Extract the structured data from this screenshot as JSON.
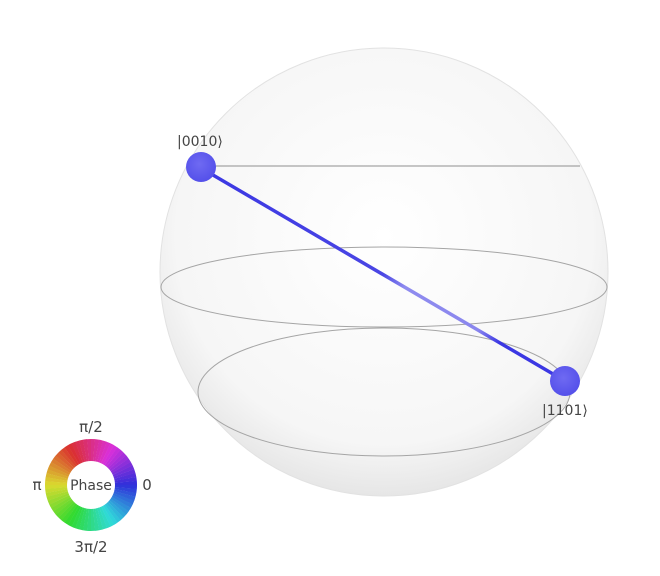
{
  "states": [
    {
      "label": "|0010⟩",
      "color": "#5b55ee"
    },
    {
      "label": "|1101⟩",
      "color": "#5b55ee"
    }
  ],
  "phase_wheel": {
    "center_label": "Phase",
    "labels": {
      "top": "π/2",
      "left": "π",
      "right": "0",
      "bottom": "3π/2"
    }
  },
  "colors": {
    "sphere_fill": "#f3f3f3",
    "ring_stroke": "#9a9a9a",
    "connector": "#3b37e3"
  }
}
